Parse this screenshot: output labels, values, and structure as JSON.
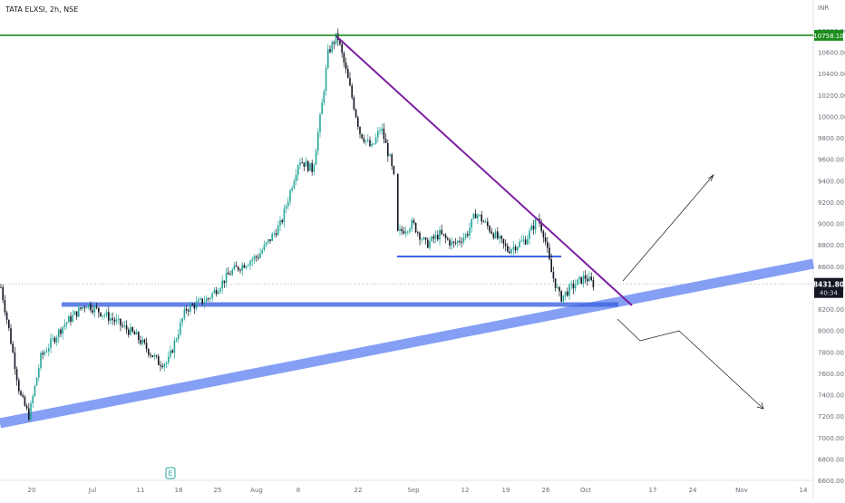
{
  "symbol_title": "TATA ELXSI, 2h, NSE",
  "currency": "INR",
  "earnings_marker": "E",
  "price_labels": {
    "high": "10758.10",
    "last": "8431.80",
    "countdown": "40:34"
  },
  "colors": {
    "up": "#26a69a",
    "down": "#131722",
    "resistance_line": "#1e8c1e",
    "trendline": "#7b1fa2",
    "support_band": "#5b7ff0",
    "support_line": "#3d63e0",
    "arrow": "#131722"
  },
  "chart_data": {
    "type": "candlestick",
    "title": "TATA ELXSI, 2h, NSE",
    "y_axis": {
      "unit": "INR",
      "ticks": [
        "6600.00",
        "6800.00",
        "7000.00",
        "7200.00",
        "7400.00",
        "7600.00",
        "7800.00",
        "8000.00",
        "8200.00",
        "8400.00",
        "8600.00",
        "8800.00",
        "9000.00",
        "9200.00",
        "9400.00",
        "9600.00",
        "9800.00",
        "10000.00",
        "10200.00",
        "10400.00",
        "10600.00",
        "10800.00"
      ],
      "range": [
        6600,
        10800
      ]
    },
    "x_axis": {
      "ticks": [
        "20",
        "Jul",
        "11",
        "18",
        "25",
        "Aug",
        "8",
        "22",
        "Sep",
        "12",
        "19",
        "26",
        "Oct",
        "17",
        "24",
        "Nov",
        "14"
      ]
    },
    "levels": {
      "all_time_high": 10758.1,
      "last_price": 8431.8,
      "range_support": 8700,
      "horizontal_support": 8250
    },
    "price_path_anchors": [
      [
        0,
        8450
      ],
      [
        10,
        8000
      ],
      [
        22,
        7400
      ],
      [
        32,
        7200
      ],
      [
        45,
        7750
      ],
      [
        70,
        8050
      ],
      [
        95,
        8250
      ],
      [
        125,
        8100
      ],
      [
        150,
        7950
      ],
      [
        175,
        7700
      ],
      [
        185,
        7700
      ],
      [
        205,
        8200
      ],
      [
        230,
        8300
      ],
      [
        255,
        8550
      ],
      [
        285,
        8700
      ],
      [
        310,
        9000
      ],
      [
        330,
        9600
      ],
      [
        345,
        9500
      ],
      [
        355,
        10100
      ],
      [
        362,
        10600
      ],
      [
        372,
        10758
      ],
      [
        385,
        10300
      ],
      [
        397,
        9850
      ],
      [
        410,
        9700
      ],
      [
        420,
        9900
      ],
      [
        430,
        9600
      ],
      [
        435,
        9400
      ],
      [
        438,
        8900
      ],
      [
        455,
        9000
      ],
      [
        470,
        8800
      ],
      [
        485,
        8900
      ],
      [
        500,
        8800
      ],
      [
        515,
        8900
      ],
      [
        525,
        9100
      ],
      [
        545,
        8900
      ],
      [
        560,
        8750
      ],
      [
        580,
        8850
      ],
      [
        593,
        9050
      ],
      [
        600,
        8900
      ],
      [
        608,
        8550
      ],
      [
        618,
        8300
      ],
      [
        630,
        8400
      ],
      [
        645,
        8500
      ],
      [
        655,
        8430
      ]
    ],
    "annotations": [
      "Resistance line at 10758.10 (all-time high)",
      "Descending trendline from peak to early October",
      "Rising support channel from late June lows",
      "Horizontal support near 8250 and range support near 8700",
      "Breakout projection arrow upward, breakdown projection arrow downward"
    ],
    "grid": false,
    "legend": "none"
  }
}
